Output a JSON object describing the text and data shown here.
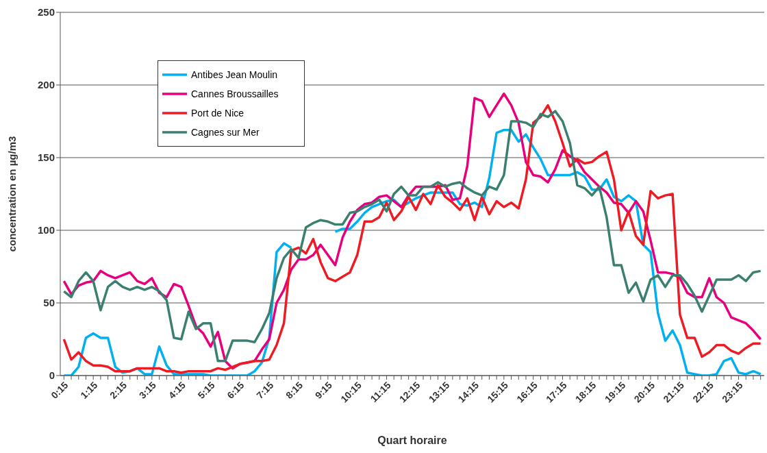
{
  "chart_data": {
    "type": "line",
    "xlabel": "Quart horaire",
    "ylabel": "concentration en µg/m3",
    "categories": [
      "0:15",
      null,
      null,
      null,
      "1:15",
      null,
      null,
      null,
      "2:15",
      null,
      null,
      null,
      "3:15",
      null,
      null,
      null,
      "4:15",
      null,
      null,
      null,
      "5:15",
      null,
      null,
      null,
      "6:15",
      null,
      null,
      null,
      "7:15",
      null,
      null,
      null,
      "8:15",
      null,
      null,
      null,
      "9:15",
      null,
      null,
      null,
      "10:15",
      null,
      null,
      null,
      "11:15",
      null,
      null,
      null,
      "12:15",
      null,
      null,
      null,
      "13:15",
      null,
      null,
      null,
      "14:15",
      null,
      null,
      null,
      "15:15",
      null,
      null,
      null,
      "16:15",
      null,
      null,
      null,
      "17:15",
      null,
      null,
      null,
      "18:15",
      null,
      null,
      null,
      "19:15",
      null,
      null,
      null,
      "20:15",
      null,
      null,
      null,
      "21:15",
      null,
      null,
      null,
      "22:15",
      null,
      null,
      null,
      "23:15",
      null,
      null,
      null
    ],
    "series": [
      {
        "name": "Antibes Jean Moulin",
        "color": "#00b0f0",
        "values": [
          0,
          0,
          6,
          26,
          29,
          26,
          26,
          6,
          2,
          3,
          5,
          1,
          1,
          20,
          7,
          1,
          1,
          1,
          1,
          1,
          0,
          0,
          0,
          0,
          0,
          0,
          3,
          9,
          26,
          85,
          91,
          88,
          null,
          null,
          null,
          null,
          null,
          99,
          101,
          101,
          106,
          112,
          116,
          118,
          120,
          121,
          116,
          119,
          122,
          124,
          126,
          126,
          126,
          126,
          118,
          117,
          119,
          116,
          136,
          167,
          169,
          169,
          161,
          166,
          157,
          149,
          138,
          138,
          138,
          138,
          140,
          137,
          128,
          128,
          135,
          123,
          120,
          124,
          120,
          90,
          85,
          43,
          24,
          31,
          21,
          2,
          1,
          0,
          0,
          1,
          10,
          12,
          2,
          1,
          3,
          1
        ]
      },
      {
        "name": "Cannes Broussailles",
        "color": "#e6007e",
        "values": [
          65,
          56,
          62,
          64,
          65,
          72,
          69,
          67,
          69,
          71,
          65,
          63,
          67,
          57,
          54,
          63,
          61,
          48,
          34,
          29,
          20,
          30,
          10,
          5,
          8,
          9,
          10,
          18,
          25,
          50,
          59,
          73,
          80,
          80,
          83,
          90,
          83,
          76,
          95,
          106,
          114,
          118,
          119,
          123,
          124,
          120,
          116,
          124,
          130,
          130,
          130,
          130,
          131,
          121,
          122,
          144,
          191,
          189,
          178,
          186,
          194,
          186,
          174,
          147,
          138,
          137,
          133,
          142,
          155,
          151,
          148,
          140,
          135,
          130,
          126,
          119,
          118,
          112,
          120,
          113,
          93,
          71,
          71,
          70,
          67,
          57,
          54,
          54,
          67,
          54,
          50,
          40,
          38,
          36,
          31,
          25
        ]
      },
      {
        "name": "Port de Nice",
        "color": "#ed1c24",
        "values": [
          25,
          11,
          16,
          10,
          7,
          7,
          6,
          3,
          3,
          3,
          5,
          5,
          5,
          5,
          3,
          3,
          2,
          3,
          3,
          3,
          3,
          5,
          4,
          6,
          8,
          9,
          10,
          10,
          11,
          21,
          36,
          86,
          88,
          84,
          94,
          78,
          67,
          65,
          68,
          71,
          83,
          106,
          106,
          109,
          119,
          107,
          113,
          123,
          114,
          125,
          118,
          131,
          123,
          119,
          114,
          122,
          107,
          123,
          111,
          120,
          116,
          119,
          115,
          135,
          174,
          178,
          186,
          175,
          160,
          144,
          149,
          146,
          147,
          151,
          154,
          135,
          100,
          113,
          96,
          90,
          127,
          122,
          124,
          125,
          42,
          26,
          26,
          13,
          16,
          21,
          21,
          17,
          15,
          19,
          22,
          22
        ]
      },
      {
        "name": "Cagnes sur Mer",
        "color": "#3a7f6f",
        "values": [
          58,
          54,
          65,
          71,
          65,
          45,
          61,
          65,
          61,
          59,
          61,
          59,
          61,
          58,
          52,
          26,
          25,
          44,
          32,
          36,
          36,
          10,
          10,
          24,
          24,
          24,
          23,
          32,
          43,
          67,
          81,
          87,
          81,
          102,
          105,
          107,
          106,
          104,
          104,
          112,
          113,
          116,
          118,
          121,
          113,
          125,
          130,
          124,
          124,
          130,
          130,
          133,
          130,
          132,
          133,
          129,
          126,
          124,
          130,
          128,
          138,
          175,
          175,
          174,
          171,
          180,
          178,
          182,
          175,
          160,
          131,
          129,
          124,
          130,
          109,
          76,
          76,
          57,
          64,
          51,
          66,
          69,
          61,
          69,
          69,
          63,
          55,
          44,
          55,
          66,
          66,
          66,
          69,
          65,
          71,
          72
        ]
      }
    ],
    "ylim": [
      0,
      250
    ],
    "yticks": [
      0,
      50,
      100,
      150,
      200,
      250
    ],
    "grid": "y",
    "legend": "top left",
    "marker": "none",
    "line_style": "solid"
  }
}
